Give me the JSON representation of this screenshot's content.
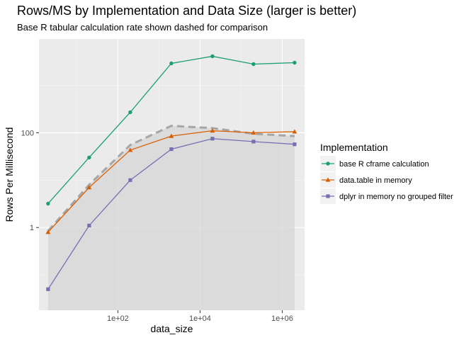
{
  "chart_data": {
    "type": "line",
    "title": "Rows/MS by Implementation and Data Size (larger is better)",
    "subtitle": "Base R tabular calculation rate shown dashed for comparison",
    "xlabel": "data_size",
    "ylabel": "Rows Per Millisecond",
    "x_scale": "log10",
    "y_scale": "log10",
    "xlim": [
      1.2,
      3500000
    ],
    "ylim": [
      0.018,
      9500
    ],
    "x_ticks": [
      {
        "value": 100,
        "label": "1e+02"
      },
      {
        "value": 10000,
        "label": "1e+04"
      },
      {
        "value": 1000000,
        "label": "1e+06"
      }
    ],
    "x_minor": [
      10,
      1000,
      100000
    ],
    "y_ticks": [
      {
        "value": 1,
        "label": "1"
      },
      {
        "value": 100,
        "label": "100"
      }
    ],
    "y_minor": [
      0.1,
      10,
      1000
    ],
    "grid": true,
    "legend_title": "Implementation",
    "legend_position": "right",
    "x": [
      2,
      20,
      200,
      2000,
      20000,
      200000,
      2000000
    ],
    "series": [
      {
        "name": "base R cframe calculation",
        "color": "#1b9e77",
        "marker": "circle",
        "values": [
          3.2,
          30,
          270,
          2900,
          4100,
          2800,
          3000
        ]
      },
      {
        "name": "data.table in memory",
        "color": "#d95f02",
        "marker": "triangle",
        "values": [
          0.8,
          7,
          43,
          85,
          110,
          100,
          105
        ]
      },
      {
        "name": "dplyr in memory no grouped filter",
        "color": "#7570b3",
        "marker": "square",
        "values": [
          0.05,
          1.1,
          10,
          45,
          75,
          65,
          57
        ]
      }
    ],
    "reference": {
      "description": "Base R tabular calculation rate",
      "style": "dashed",
      "color": "#a6a6a6",
      "values": [
        0.85,
        8,
        55,
        140,
        125,
        95,
        85
      ]
    }
  }
}
